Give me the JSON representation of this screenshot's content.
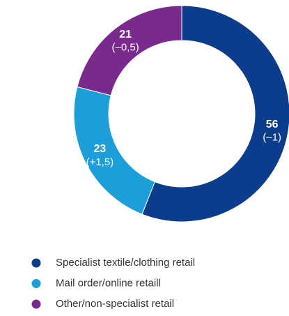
{
  "chart_data": {
    "type": "donut",
    "categories": [
      "Specialist textile/clothing retail",
      "Mail order/online retaill",
      "Other/non-specialist retail"
    ],
    "values": [
      56,
      23,
      21
    ],
    "change_labels": [
      "(–1)",
      "(+1,5)",
      "(–0,5)"
    ],
    "colors": [
      "#0c3c8c",
      "#1b9fdb",
      "#7a2a8c"
    ],
    "legend": "bottom-left"
  }
}
